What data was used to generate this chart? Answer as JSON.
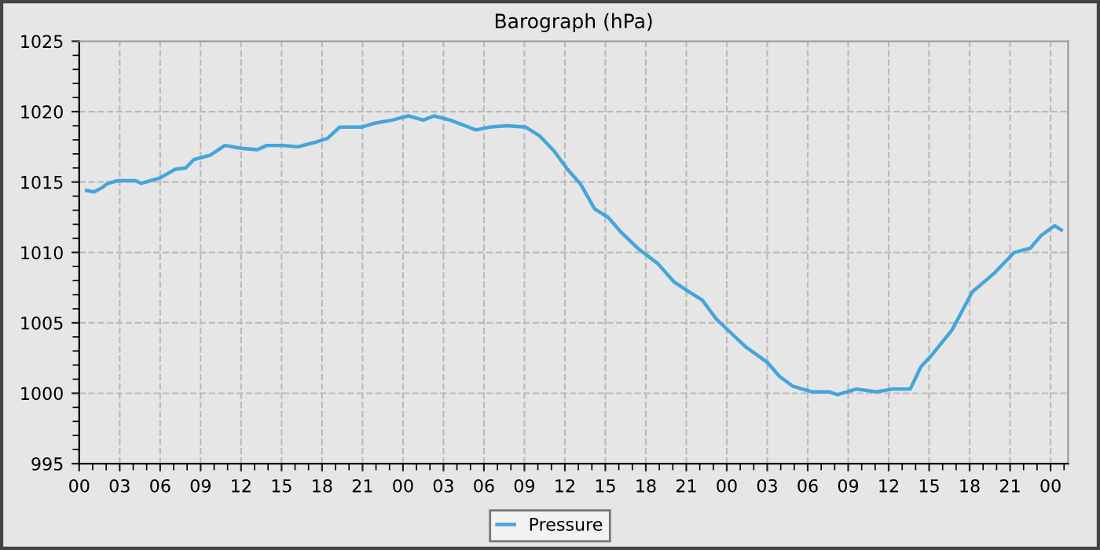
{
  "chart_data": {
    "type": "line",
    "title": "Barograph (hPa)",
    "x": [
      0.55,
      1.1,
      1.7,
      2.1,
      2.9,
      4.2,
      4.6,
      6.0,
      7.1,
      7.9,
      8.5,
      9.7,
      10.8,
      12.0,
      13.2,
      13.9,
      15.1,
      16.2,
      17.4,
      18.4,
      19.3,
      20.9,
      22.0,
      23.2,
      24.4,
      25.5,
      26.3,
      27.5,
      28.6,
      29.4,
      30.4,
      31.7,
      33.1,
      34.1,
      35.2,
      36.2,
      37.2,
      38.2,
      39.2,
      40.2,
      41.4,
      42.9,
      44.1,
      45.2,
      46.2,
      47.2,
      48.4,
      49.4,
      51.0,
      51.9,
      52.9,
      54.3,
      55.6,
      56.2,
      57.6,
      59.1,
      60.3,
      61.6,
      62.4,
      63.1,
      64.7,
      66.2,
      67.8,
      69.3,
      70.5,
      71.3,
      72.3,
      72.8
    ],
    "series": [
      {
        "name": "Pressure",
        "color": "#45a5d9",
        "values": [
          1014.4,
          1014.3,
          1014.6,
          1014.9,
          1015.1,
          1015.1,
          1014.9,
          1015.3,
          1015.9,
          1016.0,
          1016.6,
          1016.9,
          1017.6,
          1017.4,
          1017.3,
          1017.6,
          1017.6,
          1017.5,
          1017.8,
          1018.1,
          1018.9,
          1018.9,
          1019.2,
          1019.4,
          1019.7,
          1019.4,
          1019.7,
          1019.4,
          1019.0,
          1018.7,
          1018.9,
          1019.0,
          1018.9,
          1018.3,
          1017.2,
          1015.9,
          1014.8,
          1013.1,
          1012.5,
          1011.4,
          1010.3,
          1009.2,
          1007.9,
          1007.2,
          1006.6,
          1005.3,
          1004.2,
          1003.3,
          1002.2,
          1001.2,
          1000.5,
          1000.1,
          1000.1,
          999.9,
          1000.3,
          1000.1,
          1000.3,
          1000.3,
          1001.9,
          1002.6,
          1004.5,
          1007.2,
          1008.5,
          1010.0,
          1010.3,
          1011.2,
          1011.9,
          1011.6
        ]
      }
    ],
    "xlim": [
      0,
      73.3
    ],
    "xticks": [
      {
        "value": 0,
        "label": "00"
      },
      {
        "value": 3,
        "label": "03"
      },
      {
        "value": 6,
        "label": "06"
      },
      {
        "value": 9,
        "label": "09"
      },
      {
        "value": 12,
        "label": "12"
      },
      {
        "value": 15,
        "label": "15"
      },
      {
        "value": 18,
        "label": "18"
      },
      {
        "value": 21,
        "label": "21"
      },
      {
        "value": 24,
        "label": "00"
      },
      {
        "value": 27,
        "label": "03"
      },
      {
        "value": 30,
        "label": "06"
      },
      {
        "value": 33,
        "label": "09"
      },
      {
        "value": 36,
        "label": "12"
      },
      {
        "value": 39,
        "label": "15"
      },
      {
        "value": 42,
        "label": "18"
      },
      {
        "value": 45,
        "label": "21"
      },
      {
        "value": 48,
        "label": "00"
      },
      {
        "value": 51,
        "label": "03"
      },
      {
        "value": 54,
        "label": "06"
      },
      {
        "value": 57,
        "label": "09"
      },
      {
        "value": 60,
        "label": "12"
      },
      {
        "value": 63,
        "label": "15"
      },
      {
        "value": 66,
        "label": "18"
      },
      {
        "value": 69,
        "label": "21"
      },
      {
        "value": 72,
        "label": "00"
      }
    ],
    "ylim": [
      995,
      1025
    ],
    "yticks": [
      995,
      1000,
      1005,
      1010,
      1015,
      1020,
      1025
    ],
    "grid": true,
    "legend": "bottom",
    "marker": "none",
    "line_style": "solid"
  }
}
